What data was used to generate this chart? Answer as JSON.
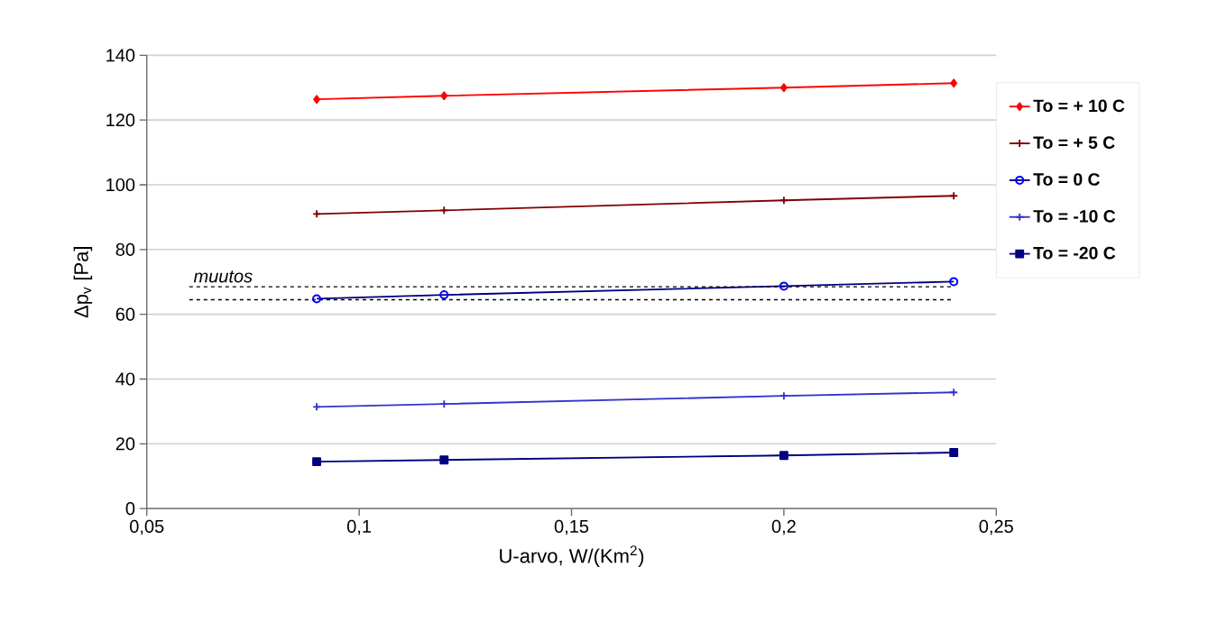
{
  "chart_data": {
    "type": "line",
    "xlabel": "U-arvo,  W/(Km$^{2}$)",
    "ylabel": "Δp$_{v}$  [Pa]",
    "xlim": [
      0.05,
      0.25
    ],
    "xticks": [
      {
        "value": 0.05,
        "label": "0,05"
      },
      {
        "value": 0.1,
        "label": "0,1"
      },
      {
        "value": 0.15,
        "label": "0,15"
      },
      {
        "value": 0.2,
        "label": "0,2"
      },
      {
        "value": 0.25,
        "label": "0,25"
      }
    ],
    "ylim": [
      0,
      140
    ],
    "yticks": [
      0,
      20,
      40,
      60,
      80,
      100,
      120,
      140
    ],
    "x": [
      0.09,
      0.12,
      0.2,
      0.24
    ],
    "grid": "y",
    "legend": "right",
    "line_style": "solid",
    "series": [
      {
        "name": "To = + 10 C",
        "color": "#ff0000",
        "marker": "diamond",
        "values": [
          126.4,
          127.5,
          130,
          131.4
        ]
      },
      {
        "name": "To = + 5 C",
        "color": "#800000",
        "marker": "cross",
        "values": [
          91,
          92.1,
          95.2,
          96.6
        ]
      },
      {
        "name": "To = 0 C",
        "color": "#000080",
        "marker": "circle",
        "values": [
          64.8,
          66,
          68.7,
          70.1
        ]
      },
      {
        "name": "To = -10 C",
        "color": "#3333cc",
        "marker": "cross",
        "values": [
          31.4,
          32.3,
          34.8,
          35.9
        ]
      },
      {
        "name": "To = -20 C",
        "color": "#000080",
        "marker": "square",
        "values": [
          14.5,
          15,
          16.4,
          17.3
        ]
      }
    ],
    "ref_lines": [
      {
        "axis": "y",
        "value": 64.5,
        "line_style": "dashed",
        "color": "#000000"
      },
      {
        "axis": "y",
        "value": 68.5,
        "label": "muutos",
        "line_style": "dashed",
        "color": "#000000"
      }
    ]
  }
}
